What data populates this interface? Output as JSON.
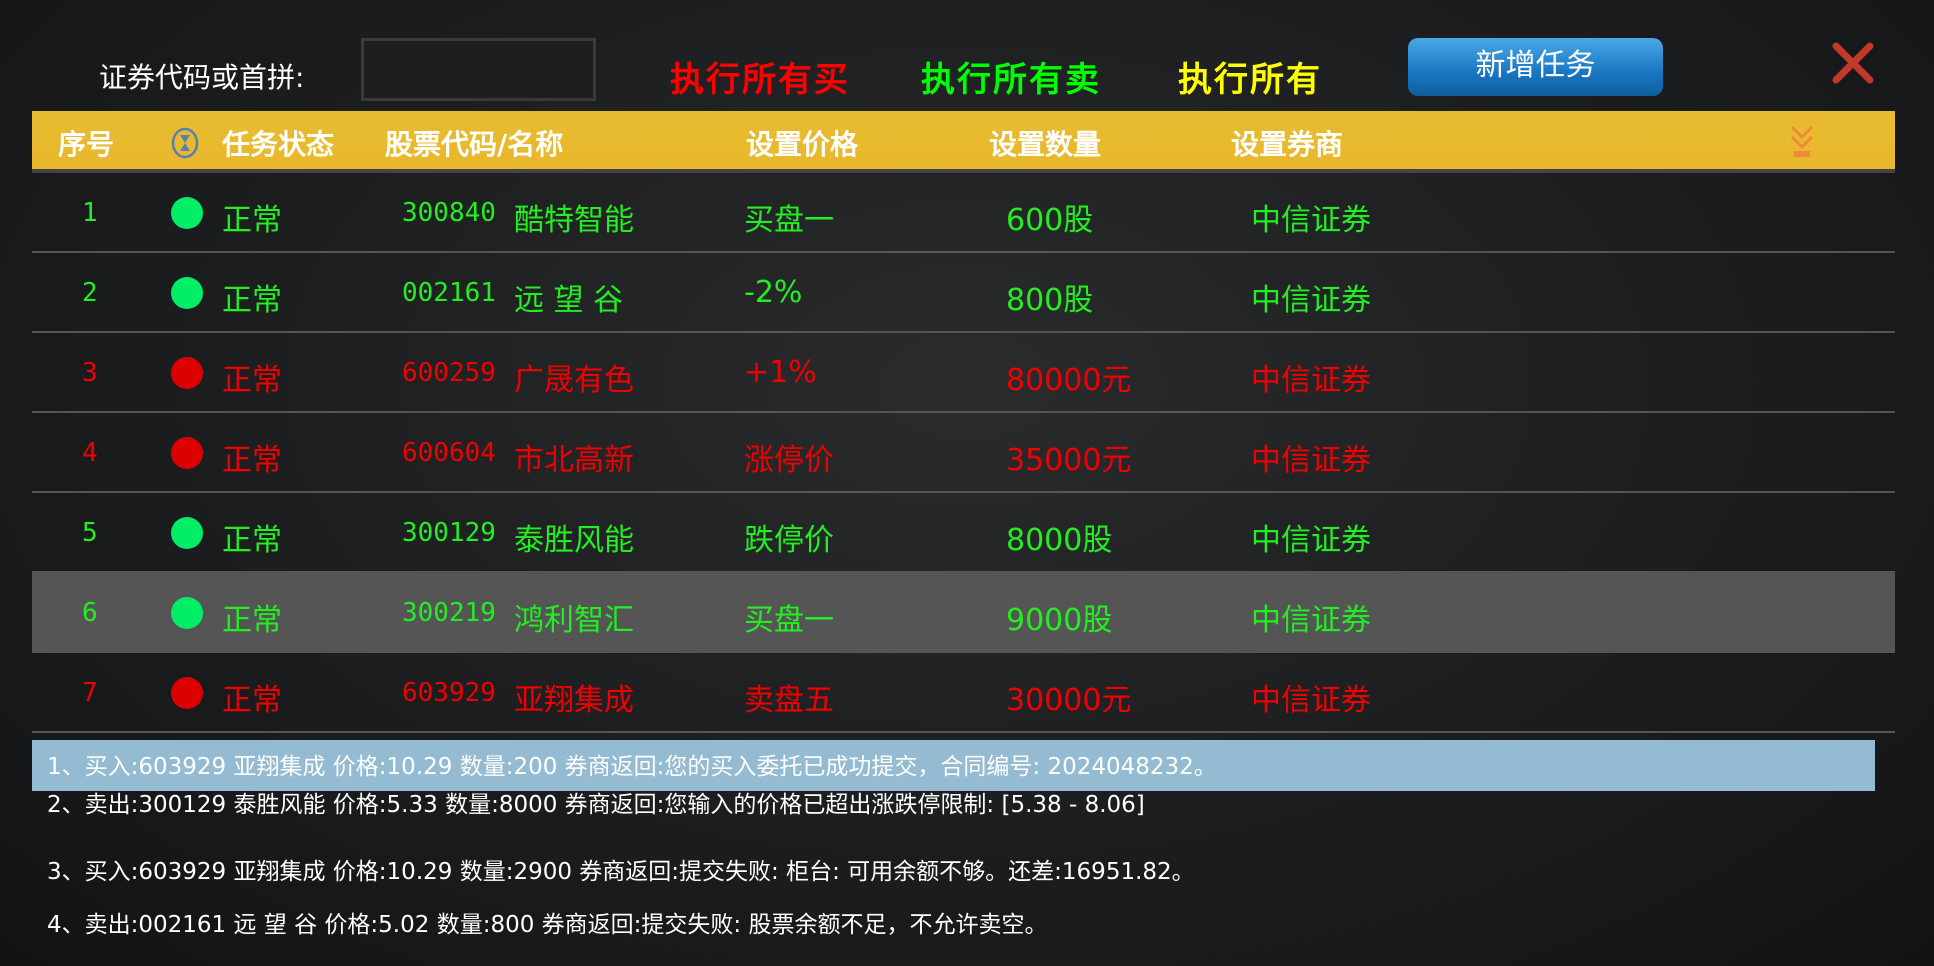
{
  "toolbar": {
    "search_label": "证券代码或首拼:",
    "search_value": "",
    "execute_all_buy": "执行所有买",
    "execute_all_sell": "执行所有卖",
    "execute_all": "执行所有",
    "add_task": "新增任务",
    "colors": {
      "buy": "#ff0000",
      "sell": "#00ff00",
      "all": "#ffff00",
      "button": "#1f7fc9"
    }
  },
  "table": {
    "headers": [
      "序号",
      "任务状态",
      "股票代码/名称",
      "设置价格",
      "设置数量",
      "设置券商"
    ],
    "header_icons": [
      "hourglass-icon",
      "double-chevron-down-icon"
    ],
    "selected_row": 6,
    "rows": [
      {
        "no": "1",
        "status": "正常",
        "dot": "green",
        "code": "300840",
        "name": "酷特智能",
        "price": "买盘一",
        "qty": "600股",
        "broker": "中信证券"
      },
      {
        "no": "2",
        "status": "正常",
        "dot": "green",
        "code": "002161",
        "name": "远 望 谷",
        "price": "-2%",
        "qty": "800股",
        "broker": "中信证券"
      },
      {
        "no": "3",
        "status": "正常",
        "dot": "red",
        "code": "600259",
        "name": "广晟有色",
        "price": "+1%",
        "qty": "80000元",
        "broker": "中信证券"
      },
      {
        "no": "4",
        "status": "正常",
        "dot": "red",
        "code": "600604",
        "name": "市北高新",
        "price": "涨停价",
        "qty": "35000元",
        "broker": "中信证券"
      },
      {
        "no": "5",
        "status": "正常",
        "dot": "green",
        "code": "300129",
        "name": "泰胜风能",
        "price": "跌停价",
        "qty": "8000股",
        "broker": "中信证券"
      },
      {
        "no": "6",
        "status": "正常",
        "dot": "green",
        "code": "300219",
        "name": "鸿利智汇",
        "price": "买盘一",
        "qty": "9000股",
        "broker": "中信证券"
      },
      {
        "no": "7",
        "status": "正常",
        "dot": "red",
        "code": "603929",
        "name": "亚翔集成",
        "price": "卖盘五",
        "qty": "30000元",
        "broker": "中信证券"
      }
    ]
  },
  "log": [
    "1、买入:603929 亚翔集成 价格:10.29 数量:200 券商返回:您的买入委托已成功提交，合同编号: 2024048232。",
    "2、卖出:300129 泰胜风能 价格:5.33 数量:8000 券商返回:您输入的价格已超出涨跌停限制: [5.38 - 8.06]",
    "3、买入:603929 亚翔集成 价格:10.29 数量:2900 券商返回:提交失败: 柜台: 可用余额不够。还差:16951.82。",
    "4、卖出:002161 远 望 谷 价格:5.02 数量:800 券商返回:提交失败: 股票余额不足，不允许卖空。"
  ]
}
